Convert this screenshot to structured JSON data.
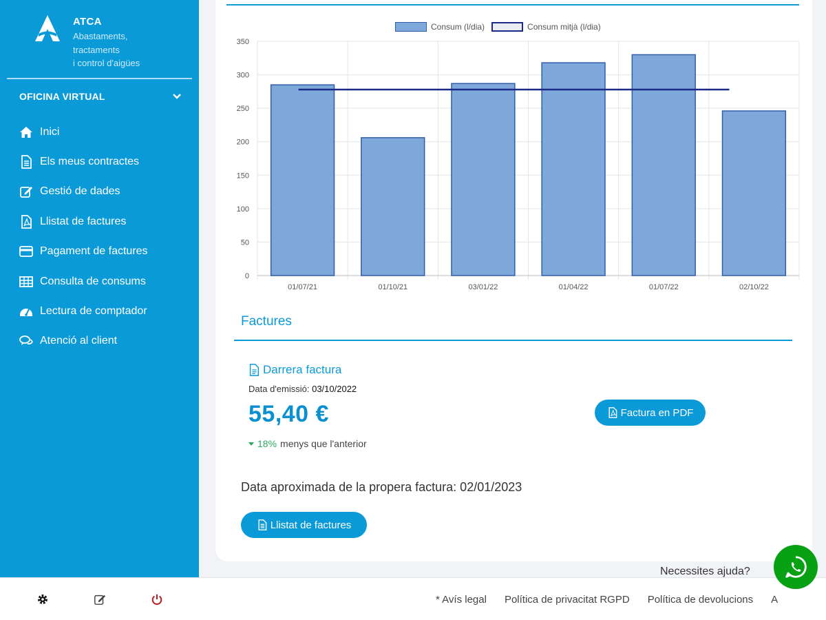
{
  "brand": {
    "name": "ATCA",
    "subtitle_lines": [
      "Abastaments,",
      "tractaments",
      "i control d'aigües"
    ]
  },
  "sidebar": {
    "section_label": "OFICINA VIRTUAL",
    "items": [
      {
        "label": "Inici",
        "icon": "home-icon"
      },
      {
        "label": "Els meus contractes",
        "icon": "document-icon"
      },
      {
        "label": "Gestió de dades",
        "icon": "edit-icon"
      },
      {
        "label": "Llistat de factures",
        "icon": "pdf-icon"
      },
      {
        "label": "Pagament de factures",
        "icon": "credit-card-icon"
      },
      {
        "label": "Consulta de consums",
        "icon": "table-icon"
      },
      {
        "label": "Lectura de comptador",
        "icon": "gauge-icon"
      },
      {
        "label": "Atenció al client",
        "icon": "chat-icon"
      }
    ]
  },
  "toolbar": {
    "icons": [
      "gear-icon",
      "edit-icon",
      "power-icon"
    ]
  },
  "chart_data": {
    "type": "bar",
    "categories": [
      "01/07/21",
      "01/10/21",
      "03/01/22",
      "01/04/22",
      "01/07/22",
      "02/10/22"
    ],
    "series": [
      {
        "name": "Consum (l/dia)",
        "type": "bar",
        "values": [
          285,
          206,
          287,
          318,
          330,
          246
        ]
      },
      {
        "name": "Consum mitjà (l/dia)",
        "type": "line",
        "values": [
          278,
          278,
          278,
          278,
          278,
          278
        ]
      }
    ],
    "ylim": [
      0,
      350
    ],
    "yticks": [
      0,
      50,
      100,
      150,
      200,
      250,
      300,
      350
    ],
    "grid": true,
    "legend_position": "top"
  },
  "invoices": {
    "section_title": "Factures",
    "last_invoice_label": "Darrera factura",
    "emission_label": "Data d'emissió:",
    "emission_date": "03/10/2022",
    "amount": "55,40 €",
    "trend_pct": "18%",
    "trend_text": "menys que l'anterior",
    "pdf_button": "Factura en PDF",
    "next_invoice_text": "Data aproximada de la propera factura: 02/01/2023",
    "list_button": "Llistat de factures"
  },
  "footer": {
    "links": [
      "* Avís legal",
      "Política de privacitat RGPD",
      "Política de devolucions",
      "A"
    ],
    "help_text": "Necessites ajuda?"
  },
  "colors": {
    "primary": "#0a9ad8",
    "bar_fill": "#7fa8da",
    "bar_stroke": "#2f5daa",
    "avg_line": "#1b2a86",
    "whatsapp": "#08a114",
    "trend_green": "#2aa85c"
  }
}
